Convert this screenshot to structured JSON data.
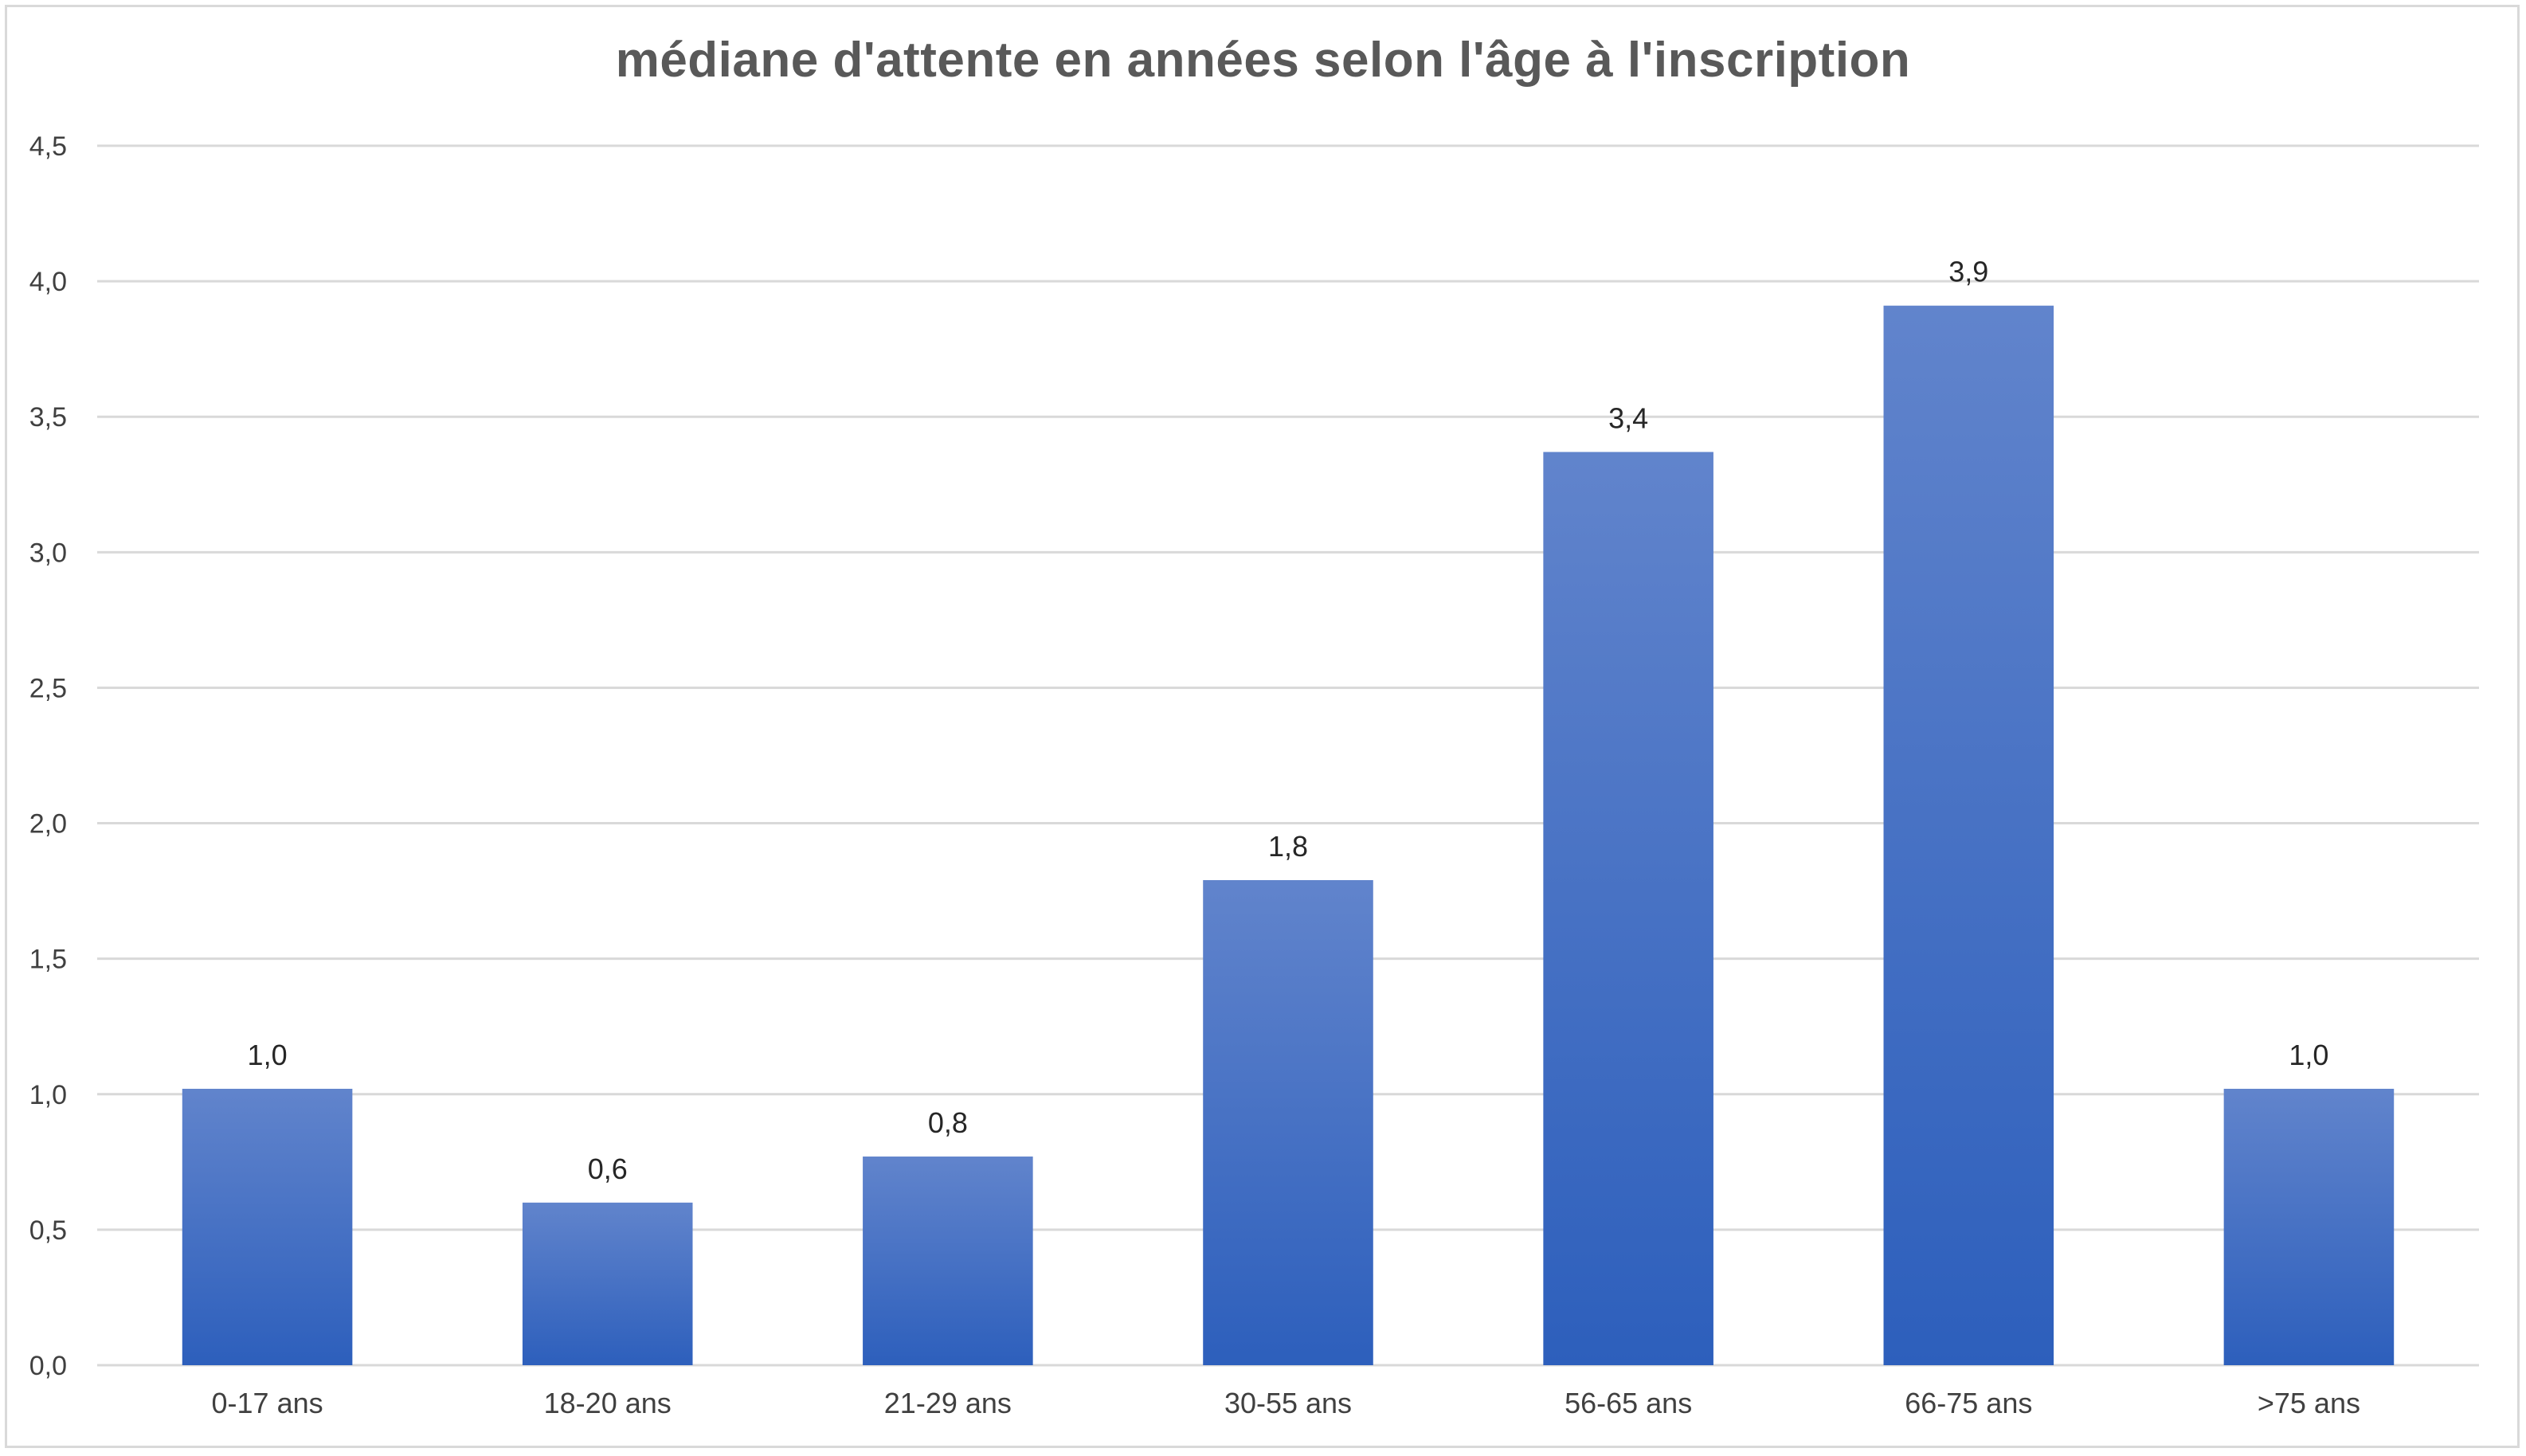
{
  "chart_data": {
    "type": "bar",
    "title": "médiane d'attente en années selon l'âge à l'inscription",
    "xlabel": "",
    "ylabel": "",
    "categories": [
      "0-17 ans",
      "18-20 ans",
      "21-29 ans",
      "30-55 ans",
      "56-65 ans",
      "66-75 ans",
      ">75 ans"
    ],
    "values": [
      1.02,
      0.6,
      0.77,
      1.79,
      3.37,
      3.91,
      1.02
    ],
    "data_labels": [
      "1,0",
      "0,6",
      "0,8",
      "1,8",
      "3,4",
      "3,9",
      "1,0"
    ],
    "ylim": [
      0,
      4.5
    ],
    "yticks": [
      0,
      0.5,
      1.0,
      1.5,
      2.0,
      2.5,
      3.0,
      3.5,
      4.0,
      4.5
    ],
    "ytick_labels": [
      "0,0",
      "0,5",
      "1,0",
      "1,5",
      "2,0",
      "2,5",
      "3,0",
      "3,5",
      "4,0",
      "4,5"
    ],
    "grid": true,
    "legend": "none",
    "colors": {
      "bar_top": "#6184cc",
      "bar_bottom": "#2d5fbc",
      "grid": "#d9d9d9",
      "title": "#595959"
    }
  }
}
